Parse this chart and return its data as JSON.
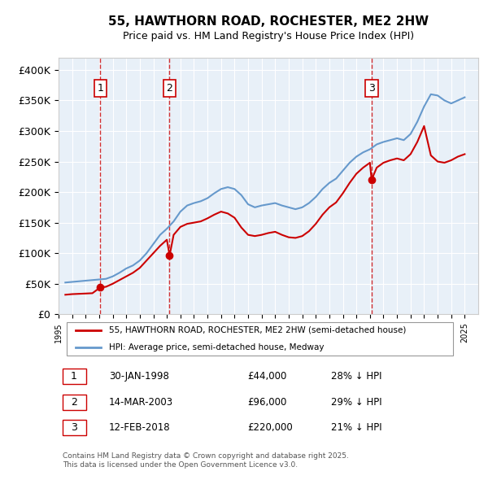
{
  "title": "55, HAWTHORN ROAD, ROCHESTER, ME2 2HW",
  "subtitle": "Price paid vs. HM Land Registry's House Price Index (HPI)",
  "xlabel": "",
  "ylabel": "",
  "xlim": [
    1995.0,
    2026.0
  ],
  "ylim": [
    0,
    420000
  ],
  "yticks": [
    0,
    50000,
    100000,
    150000,
    200000,
    250000,
    300000,
    350000,
    400000
  ],
  "ytick_labels": [
    "£0",
    "£50K",
    "£100K",
    "£150K",
    "£200K",
    "£250K",
    "£300K",
    "£350K",
    "£400K"
  ],
  "background_color": "#ffffff",
  "plot_background": "#e8f0f8",
  "grid_color": "#ffffff",
  "sale_color": "#cc0000",
  "hpi_color": "#6699cc",
  "vline_color": "#cc0000",
  "vline_style": "--",
  "marker_box_color": "#cc0000",
  "transactions": [
    {
      "num": 1,
      "date_num": 1998.08,
      "price": 44000,
      "label": "1",
      "year_label": "30-JAN-1998",
      "price_label": "£44,000",
      "pct_label": "28% ↓ HPI"
    },
    {
      "num": 2,
      "date_num": 2003.2,
      "price": 96000,
      "label": "2",
      "year_label": "14-MAR-2003",
      "price_label": "£96,000",
      "pct_label": "29% ↓ HPI"
    },
    {
      "num": 3,
      "date_num": 2018.12,
      "price": 220000,
      "label": "3",
      "year_label": "12-FEB-2018",
      "price_label": "£220,000",
      "pct_label": "21% ↓ HPI"
    }
  ],
  "legend_entries": [
    {
      "label": "55, HAWTHORN ROAD, ROCHESTER, ME2 2HW (semi-detached house)",
      "color": "#cc0000"
    },
    {
      "label": "HPI: Average price, semi-detached house, Medway",
      "color": "#6699cc"
    }
  ],
  "footer": "Contains HM Land Registry data © Crown copyright and database right 2025.\nThis data is licensed under the Open Government Licence v3.0.",
  "hpi_data": {
    "years": [
      1995.5,
      1996.0,
      1996.5,
      1997.0,
      1997.5,
      1998.0,
      1998.5,
      1999.0,
      1999.5,
      2000.0,
      2000.5,
      2001.0,
      2001.5,
      2002.0,
      2002.5,
      2003.0,
      2003.5,
      2004.0,
      2004.5,
      2005.0,
      2005.5,
      2006.0,
      2006.5,
      2007.0,
      2007.5,
      2008.0,
      2008.5,
      2009.0,
      2009.5,
      2010.0,
      2010.5,
      2011.0,
      2011.5,
      2012.0,
      2012.5,
      2013.0,
      2013.5,
      2014.0,
      2014.5,
      2015.0,
      2015.5,
      2016.0,
      2016.5,
      2017.0,
      2017.5,
      2018.0,
      2018.5,
      2019.0,
      2019.5,
      2020.0,
      2020.5,
      2021.0,
      2021.5,
      2022.0,
      2022.5,
      2023.0,
      2023.5,
      2024.0,
      2024.5,
      2025.0
    ],
    "values": [
      52000,
      53000,
      54000,
      55000,
      56000,
      57000,
      58000,
      62000,
      68000,
      75000,
      80000,
      88000,
      100000,
      115000,
      130000,
      140000,
      152000,
      168000,
      178000,
      182000,
      185000,
      190000,
      198000,
      205000,
      208000,
      205000,
      195000,
      180000,
      175000,
      178000,
      180000,
      182000,
      178000,
      175000,
      172000,
      175000,
      182000,
      192000,
      205000,
      215000,
      222000,
      235000,
      248000,
      258000,
      265000,
      270000,
      278000,
      282000,
      285000,
      288000,
      285000,
      295000,
      315000,
      340000,
      360000,
      358000,
      350000,
      345000,
      350000,
      355000
    ]
  },
  "sale_hpi_data": {
    "years": [
      1995.5,
      1996.0,
      1996.5,
      1997.0,
      1997.5,
      1998.08,
      1998.5,
      1999.0,
      1999.5,
      2000.0,
      2000.5,
      2001.0,
      2001.5,
      2002.0,
      2002.5,
      2003.0,
      2003.2,
      2003.5,
      2004.0,
      2004.5,
      2005.0,
      2005.5,
      2006.0,
      2006.5,
      2007.0,
      2007.5,
      2008.0,
      2008.5,
      2009.0,
      2009.5,
      2010.0,
      2010.5,
      2011.0,
      2011.5,
      2012.0,
      2012.5,
      2013.0,
      2013.5,
      2014.0,
      2014.5,
      2015.0,
      2015.5,
      2016.0,
      2016.5,
      2017.0,
      2017.5,
      2018.0,
      2018.12,
      2018.5,
      2019.0,
      2019.5,
      2020.0,
      2020.5,
      2021.0,
      2021.5,
      2022.0,
      2022.5,
      2023.0,
      2023.5,
      2024.0,
      2024.5,
      2025.0
    ],
    "values": [
      32000,
      33000,
      33500,
      34000,
      34500,
      44000,
      45000,
      50000,
      56000,
      62000,
      68000,
      76000,
      88000,
      100000,
      112000,
      122000,
      96000,
      130000,
      143000,
      148000,
      150000,
      152000,
      157000,
      163000,
      168000,
      165000,
      158000,
      142000,
      130000,
      128000,
      130000,
      133000,
      135000,
      130000,
      126000,
      125000,
      128000,
      136000,
      148000,
      163000,
      175000,
      183000,
      198000,
      215000,
      230000,
      240000,
      248000,
      220000,
      240000,
      248000,
      252000,
      255000,
      252000,
      262000,
      282000,
      308000,
      260000,
      250000,
      248000,
      252000,
      258000,
      262000
    ]
  }
}
